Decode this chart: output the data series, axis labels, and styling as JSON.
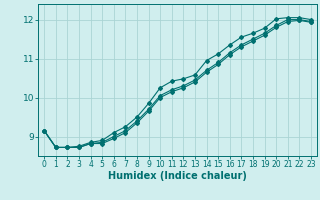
{
  "xlabel": "Humidex (Indice chaleur)",
  "ylabel": "",
  "bg_color": "#d0eeee",
  "grid_color": "#aad4d4",
  "line_color": "#007070",
  "xlim": [
    -0.5,
    23.5
  ],
  "ylim": [
    8.5,
    12.4
  ],
  "yticks": [
    9,
    10,
    11,
    12
  ],
  "xticks": [
    0,
    1,
    2,
    3,
    4,
    5,
    6,
    7,
    8,
    9,
    10,
    11,
    12,
    13,
    14,
    15,
    16,
    17,
    18,
    19,
    20,
    21,
    22,
    23
  ],
  "series1_x": [
    0,
    1,
    2,
    3,
    4,
    5,
    6,
    7,
    8,
    9,
    10,
    11,
    12,
    13,
    14,
    15,
    16,
    17,
    18,
    19,
    20,
    21,
    22,
    23
  ],
  "series1_y": [
    9.15,
    8.72,
    8.72,
    8.72,
    8.82,
    8.85,
    9.0,
    9.15,
    9.4,
    9.7,
    10.05,
    10.2,
    10.3,
    10.45,
    10.7,
    10.9,
    11.15,
    11.35,
    11.5,
    11.65,
    11.85,
    12.0,
    12.0,
    11.95
  ],
  "series2_x": [
    0,
    1,
    2,
    3,
    4,
    5,
    6,
    7,
    8,
    9,
    10,
    11,
    12,
    13,
    14,
    15,
    16,
    17,
    18,
    19,
    20,
    21,
    22,
    23
  ],
  "series2_y": [
    9.15,
    8.72,
    8.72,
    8.75,
    8.85,
    8.9,
    9.1,
    9.25,
    9.5,
    9.85,
    10.25,
    10.42,
    10.48,
    10.58,
    10.95,
    11.12,
    11.35,
    11.55,
    11.65,
    11.78,
    12.02,
    12.05,
    12.05,
    12.0
  ],
  "series3_x": [
    0,
    1,
    2,
    3,
    4,
    5,
    6,
    7,
    8,
    9,
    10,
    11,
    12,
    13,
    14,
    15,
    16,
    17,
    18,
    19,
    20,
    21,
    22,
    23
  ],
  "series3_y": [
    9.15,
    8.72,
    8.72,
    8.72,
    8.82,
    8.82,
    8.95,
    9.1,
    9.35,
    9.65,
    10.0,
    10.15,
    10.25,
    10.4,
    10.65,
    10.85,
    11.1,
    11.3,
    11.45,
    11.6,
    11.8,
    11.95,
    11.98,
    11.93
  ],
  "marker": "D",
  "marker_size": 2.0,
  "line_width": 0.8
}
